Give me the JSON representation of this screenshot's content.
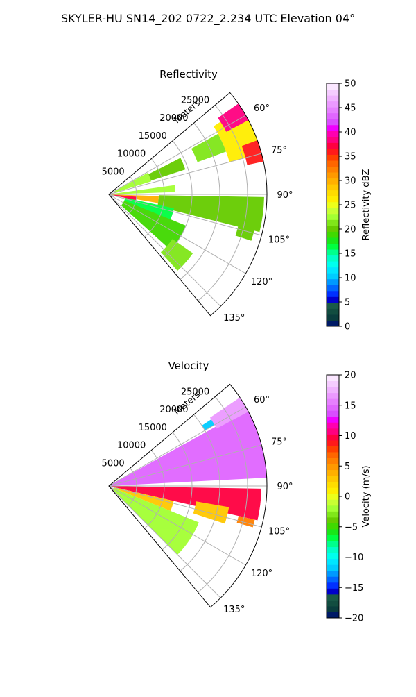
{
  "suptitle": "SKYLER-HU  SN14_202  0722_2.234 UTC Elevation 04°",
  "chart_data": [
    {
      "type": "heatmap",
      "projection": "polar-sector",
      "title": "Reflectivity",
      "radial_axis_label": "Meters",
      "radial_ticks": [
        5000,
        10000,
        15000,
        20000,
        25000
      ],
      "radial_tick_labels": [
        "5000",
        "10000",
        "15000",
        "20000",
        "25000"
      ],
      "rlim": [
        0,
        28500
      ],
      "theta_range_deg": [
        50,
        140
      ],
      "theta_ticks_deg": [
        60,
        75,
        90,
        105,
        120,
        135
      ],
      "theta_tick_labels": [
        "60°",
        "75°",
        "90°",
        "105°",
        "120°",
        "135°"
      ],
      "grid": true,
      "colorbar": {
        "label": "Reflectivity dBZ",
        "range": [
          0,
          50
        ],
        "ticks": [
          0,
          5,
          10,
          15,
          20,
          25,
          30,
          35,
          40,
          45,
          50
        ],
        "tick_labels": [
          "0",
          "5",
          "10",
          "15",
          "20",
          "25",
          "30",
          "35",
          "40",
          "45",
          "50"
        ],
        "colors": [
          "#001a66",
          "#0a3d3d",
          "#124d40",
          "#1a5a48",
          "#0000cc",
          "#0030ff",
          "#0066ff",
          "#0099ff",
          "#00ccff",
          "#00e6ff",
          "#00ffee",
          "#00ffc8",
          "#00ff8c",
          "#00ff40",
          "#19e619",
          "#40d900",
          "#66cc00",
          "#80e619",
          "#a3ff33",
          "#c8ff33",
          "#ecff1a",
          "#ffee00",
          "#ffdd00",
          "#ffc800",
          "#ffb000",
          "#ff9900",
          "#ff8000",
          "#ff6600",
          "#ff4000",
          "#ff1a1a",
          "#ff0040",
          "#ff0080",
          "#ff00b0",
          "#f000ff",
          "#d94dff",
          "#e066ff",
          "#e680ff",
          "#eb99ff",
          "#f0b3ff",
          "#f5ccff",
          "#fae6ff"
        ]
      },
      "echo_regions": [
        {
          "theta": [
            61,
            73
          ],
          "r": [
            1000,
            8000
          ],
          "value": 22
        },
        {
          "theta": [
            63,
            72
          ],
          "r": [
            8000,
            14500
          ],
          "value": 20
        },
        {
          "theta": [
            61,
            70
          ],
          "r": [
            17000,
            22500
          ],
          "value": 21
        },
        {
          "theta": [
            57,
            75
          ],
          "r": [
            22500,
            28500
          ],
          "value": 26
        },
        {
          "theta": [
            55,
            62
          ],
          "r": [
            24000,
            28500
          ],
          "value": 38
        },
        {
          "theta": [
            70,
            78
          ],
          "r": [
            25500,
            28500
          ],
          "value": 36
        },
        {
          "theta": [
            82,
            88
          ],
          "r": [
            0,
            12000
          ],
          "value": 23
        },
        {
          "theta": [
            92,
            100
          ],
          "r": [
            0,
            9000
          ],
          "value": 30
        },
        {
          "theta": [
            95,
            102
          ],
          "r": [
            1000,
            5000
          ],
          "value": 37
        },
        {
          "theta": [
            91,
            104
          ],
          "r": [
            9000,
            28000
          ],
          "value": 20
        },
        {
          "theta": [
            102,
            115
          ],
          "r": [
            3000,
            12000
          ],
          "value": 16
        },
        {
          "theta": [
            112,
            132
          ],
          "r": [
            3000,
            15000
          ],
          "value": 19
        },
        {
          "theta": [
            125,
            138
          ],
          "r": [
            14000,
            18500
          ],
          "value": 21
        },
        {
          "theta": [
            103,
            108
          ],
          "r": [
            24000,
            27000
          ],
          "value": 20
        }
      ]
    },
    {
      "type": "heatmap",
      "projection": "polar-sector",
      "title": "Velocity",
      "radial_axis_label": "Meters",
      "radial_ticks": [
        5000,
        10000,
        15000,
        20000,
        25000
      ],
      "radial_tick_labels": [
        "5000",
        "10000",
        "15000",
        "20000",
        "25000"
      ],
      "rlim": [
        0,
        28500
      ],
      "theta_range_deg": [
        50,
        140
      ],
      "theta_ticks_deg": [
        60,
        75,
        90,
        105,
        120,
        135
      ],
      "theta_tick_labels": [
        "60°",
        "75°",
        "90°",
        "105°",
        "120°",
        "135°"
      ],
      "grid": true,
      "colorbar": {
        "label": "Velocity (m/s)",
        "range": [
          -20,
          20
        ],
        "ticks": [
          -20,
          -15,
          -10,
          -5,
          0,
          5,
          10,
          15,
          20
        ],
        "tick_labels": [
          "−20",
          "−15",
          "−10",
          "−5",
          "0",
          "5",
          "10",
          "15",
          "20"
        ],
        "colors": [
          "#001a66",
          "#0a3d3d",
          "#124d40",
          "#1a5a48",
          "#0000cc",
          "#0030ff",
          "#0066ff",
          "#0099ff",
          "#00ccff",
          "#00e6ff",
          "#00ffee",
          "#00ffc8",
          "#00ff8c",
          "#00ff40",
          "#19e619",
          "#40d900",
          "#66cc00",
          "#80e619",
          "#a3ff33",
          "#c8ff33",
          "#ecff1a",
          "#ffee00",
          "#ffdd00",
          "#ffc800",
          "#ffb000",
          "#ff9900",
          "#ff8000",
          "#ff6600",
          "#ff4000",
          "#ff1a1a",
          "#ff0040",
          "#ff0080",
          "#ff00b0",
          "#f000ff",
          "#d94dff",
          "#e066ff",
          "#e680ff",
          "#eb99ff",
          "#f0b3ff",
          "#f5ccff",
          "#fae6ff"
        ]
      },
      "echo_regions": [
        {
          "theta": [
            61,
            87
          ],
          "r": [
            500,
            28500
          ],
          "value": 15
        },
        {
          "theta": [
            56,
            62
          ],
          "r": [
            22000,
            28500
          ],
          "value": 17
        },
        {
          "theta": [
            57,
            60
          ],
          "r": [
            20000,
            22000
          ],
          "value": -12
        },
        {
          "theta": [
            91,
            103
          ],
          "r": [
            500,
            27500
          ],
          "value": 10
        },
        {
          "theta": [
            103,
            112
          ],
          "r": [
            1000,
            12000
          ],
          "value": 3
        },
        {
          "theta": [
            112,
            135
          ],
          "r": [
            1000,
            17500
          ],
          "value": -2
        },
        {
          "theta": [
            100,
            108
          ],
          "r": [
            16000,
            22000
          ],
          "value": 3
        },
        {
          "theta": [
            103,
            106
          ],
          "r": [
            24000,
            27000
          ],
          "value": 6
        }
      ]
    }
  ]
}
